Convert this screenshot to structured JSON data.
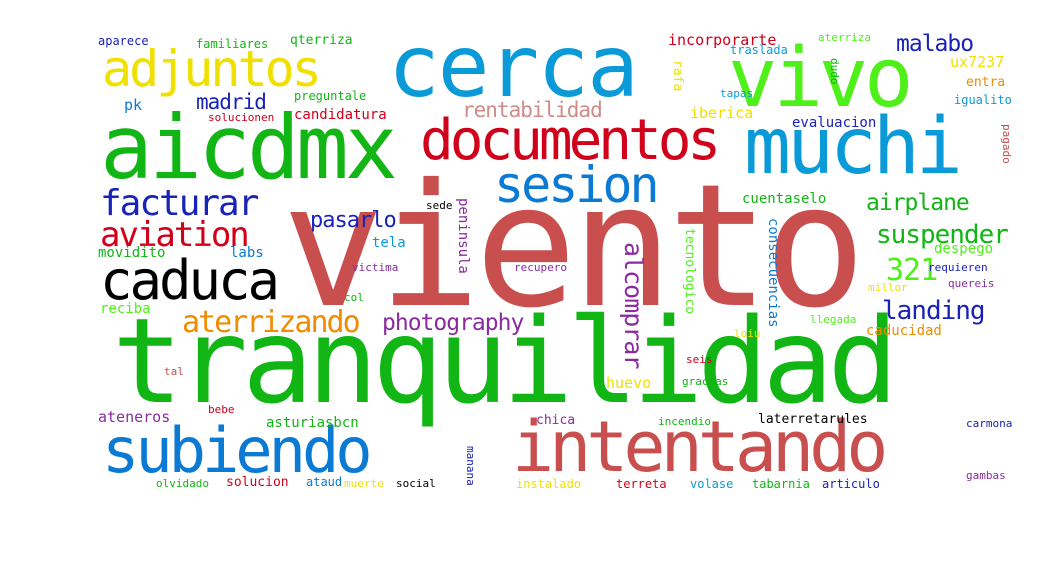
{
  "palette": {
    "red": "#c94f4f",
    "green": "#11b514",
    "lime": "#4ff01a",
    "blue": "#0b7ad4",
    "cyan": "#0a9ad8",
    "navy": "#1a23b8",
    "purple": "#8a2ba0",
    "yellow": "#f0e000",
    "orange": "#ef8c00",
    "pink": "#d08a8a",
    "crimson": "#d0001a",
    "black": "#000000"
  },
  "words": [
    "viento",
    "tranquilidad",
    "aicdmx",
    "cerca",
    "vivo",
    "muchi",
    "documentos",
    "adjuntos",
    "intentando",
    "subiendo",
    "caduca",
    "sesion",
    "facturar",
    "aviation",
    "aterrizando",
    "photography",
    "landing",
    "suspender",
    "airplane",
    "malabo",
    "madrid",
    "rentabilidad",
    "pasarlo",
    "321",
    "alcomprar",
    "qterriza",
    "incorporarte",
    "familiares",
    "aparece",
    "pk",
    "preguntale",
    "candidatura",
    "solucionen",
    "rafa",
    "tapas",
    "iberica",
    "evaluacion",
    "cuentaselo",
    "traslada",
    "aterriza",
    "ux7237",
    "entra",
    "igualito",
    "dudo",
    "pagado",
    "sede",
    "peninsula",
    "tela",
    "victima",
    "recupero",
    "consecuencias",
    "tecnologico",
    "despego",
    "requieren",
    "quereis",
    "millor",
    "movidito",
    "labs",
    "col",
    "reciba",
    "llegada",
    "loiu",
    "caducidad",
    "seis",
    "huevo",
    "tal",
    "gracias",
    "ateneros",
    "asturiasbcn",
    "bebe",
    "chica",
    "incendio",
    "laterretarules",
    "carmona",
    "manana",
    "gambas",
    "olvidado",
    "solucion",
    "ataud",
    "muerte",
    "social",
    "instalado",
    "terreta",
    "volase",
    "tabarnia",
    "articulo"
  ]
}
